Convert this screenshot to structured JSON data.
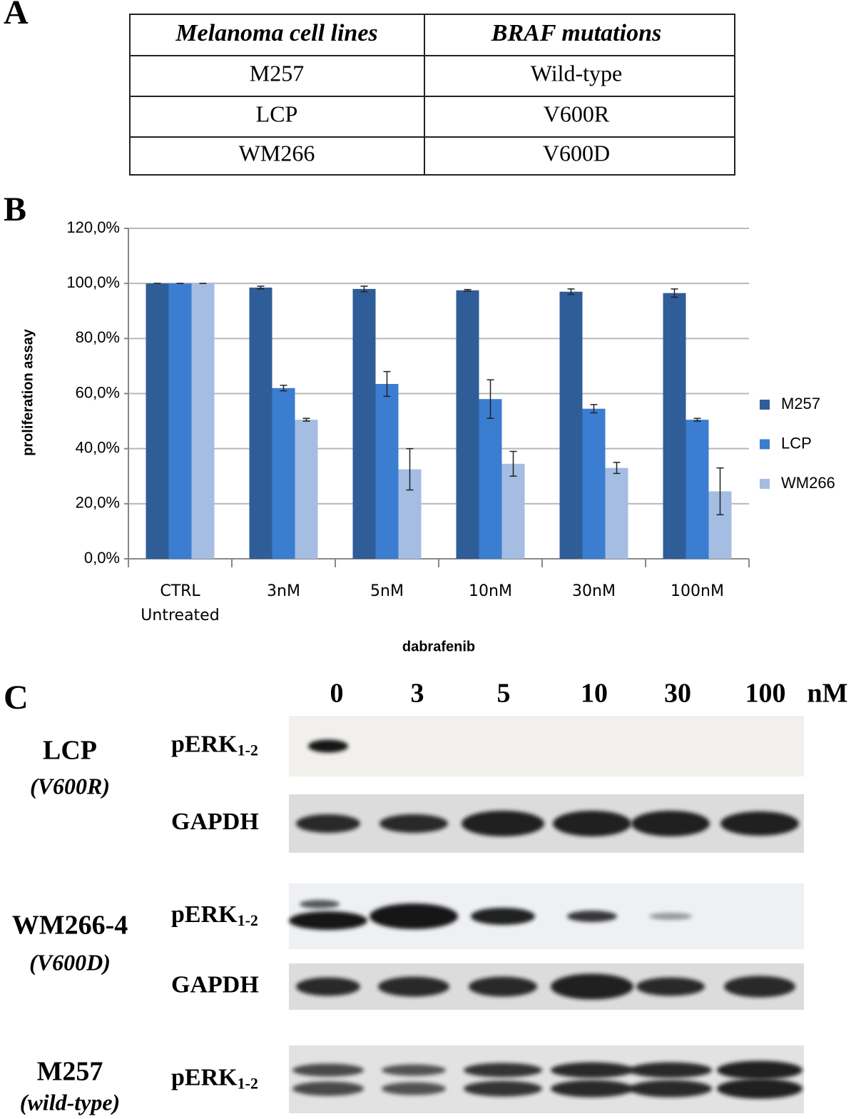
{
  "panel_labels": [
    "A",
    "B",
    "C"
  ],
  "table": {
    "header": [
      "Melanoma cell lines",
      "BRAF mutations"
    ],
    "rows": [
      [
        "M257",
        "Wild-type"
      ],
      [
        "LCP",
        "V600R"
      ],
      [
        "WM266",
        "V600D"
      ]
    ]
  },
  "chart_data": {
    "type": "bar",
    "y_label": "proliferation assay",
    "x_label": "dabrafenib",
    "categories": [
      "CTRL Untreated",
      "3nM",
      "5nM",
      "10nM",
      "30nM",
      "100nM"
    ],
    "series": [
      {
        "name": "M257",
        "color": "#2f5d98",
        "values": [
          100,
          98.5,
          98,
          97.5,
          97,
          96.5
        ],
        "errors": [
          0,
          0.5,
          1,
          0.3,
          1,
          1.5
        ]
      },
      {
        "name": "LCP",
        "color": "#3b7dd0",
        "values": [
          100,
          62,
          63.5,
          58,
          54.5,
          50.5
        ],
        "errors": [
          0,
          1,
          4.5,
          7,
          1.5,
          0.5
        ]
      },
      {
        "name": "WM266",
        "color": "#a5bde3",
        "values": [
          100,
          50.5,
          32.5,
          34.5,
          33,
          24.5
        ],
        "errors": [
          0,
          0.5,
          7.5,
          4.5,
          2,
          8.5
        ]
      }
    ],
    "ylim": [
      0,
      120
    ],
    "yticks": [
      {
        "value": 0,
        "label": "0,0%"
      },
      {
        "value": 20,
        "label": "20,0%"
      },
      {
        "value": 40,
        "label": "40,0%"
      },
      {
        "value": 60,
        "label": "60,0%"
      },
      {
        "value": 80,
        "label": "80,0%"
      },
      {
        "value": 100,
        "label": "100,0%"
      },
      {
        "value": 120,
        "label": "120,0%"
      }
    ],
    "grid": true,
    "legend": "right"
  },
  "blot": {
    "doses": [
      "0",
      "3",
      "5",
      "10",
      "30",
      "100"
    ],
    "unit": "nM",
    "cell_lines": [
      {
        "name": "LCP",
        "mutation": "(V600R)",
        "rows": [
          {
            "protein": "pERK",
            "subscript": "1-2"
          },
          {
            "protein": "GAPDH"
          }
        ]
      },
      {
        "name": "WM266-4",
        "mutation": "(V600D)",
        "rows": [
          {
            "protein": "pERK",
            "subscript": "1-2"
          },
          {
            "protein": "GAPDH"
          }
        ]
      },
      {
        "name": "M257",
        "mutation": "(wild-type)",
        "rows": [
          {
            "protein": "pERK",
            "subscript": "1-2"
          }
        ]
      }
    ]
  }
}
